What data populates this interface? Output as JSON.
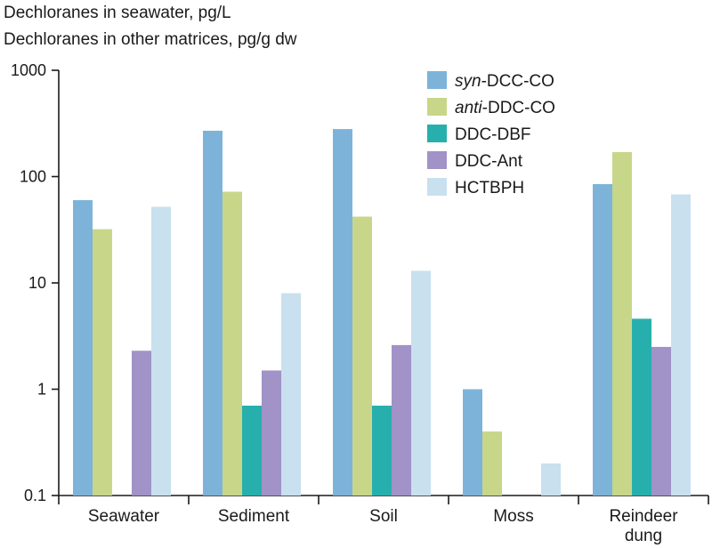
{
  "chart_data": {
    "type": "bar",
    "title_lines": [
      "Dechloranes in seawater, pg/L",
      "Dechloranes in other matrices, pg/g dw"
    ],
    "xlabel": "",
    "ylabel": "",
    "yscale": "log",
    "ylim": [
      0.1,
      1000
    ],
    "yticks": [
      {
        "value": 1000,
        "label": "1000"
      },
      {
        "value": 100,
        "label": "100"
      },
      {
        "value": 10,
        "label": "10"
      },
      {
        "value": 1,
        "label": "1"
      },
      {
        "value": 0.1,
        "label": "0.1"
      }
    ],
    "categories": [
      {
        "lines": [
          "Seawater"
        ]
      },
      {
        "lines": [
          "Sediment"
        ]
      },
      {
        "lines": [
          "Soil"
        ]
      },
      {
        "lines": [
          "Moss"
        ]
      },
      {
        "lines": [
          "Reindeer",
          "dung"
        ]
      }
    ],
    "series": [
      {
        "name_italic": "syn",
        "name_rest": "-DCC-CO",
        "color": "#7db3d9",
        "values": [
          60,
          270,
          280,
          1.0,
          85
        ]
      },
      {
        "name_italic": "anti",
        "name_rest": "-DDC-CO",
        "color": "#c8d68a",
        "values": [
          32,
          72,
          42,
          0.4,
          170
        ]
      },
      {
        "name_italic": "",
        "name_rest": "DDC-DBF",
        "color": "#27afad",
        "values": [
          null,
          0.7,
          0.7,
          null,
          4.6
        ]
      },
      {
        "name_italic": "",
        "name_rest": "DDC-Ant",
        "color": "#a192c7",
        "values": [
          2.3,
          1.5,
          2.6,
          null,
          2.5
        ]
      },
      {
        "name_italic": "",
        "name_rest": "HCTBPH",
        "color": "#c9e0ee",
        "values": [
          52,
          8,
          13,
          0.2,
          68
        ]
      }
    ],
    "legend_position": "top-right",
    "grid": false
  }
}
